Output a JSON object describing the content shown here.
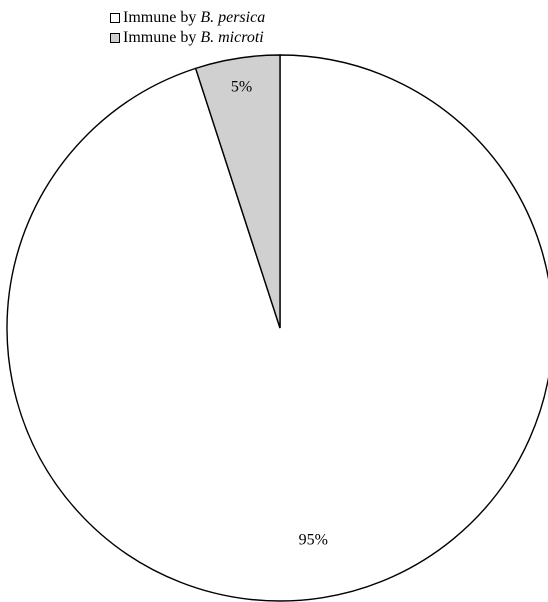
{
  "chart_data": {
    "type": "pie",
    "title": "",
    "categories": [
      "Immune by B. persica",
      "Immune by B. microti"
    ],
    "values": [
      95,
      5
    ],
    "labels": [
      "95%",
      "5%"
    ],
    "colors": [
      "#ffffff",
      "#d0d0d0"
    ],
    "stroke_color": "#000000",
    "legend": {
      "placement": "top-left",
      "items": [
        {
          "prefix": "Immune by ",
          "species": "B. persica",
          "color": "#ffffff"
        },
        {
          "prefix": "Immune by ",
          "species": "B. microti",
          "color": "#d0d0d0"
        }
      ]
    }
  }
}
